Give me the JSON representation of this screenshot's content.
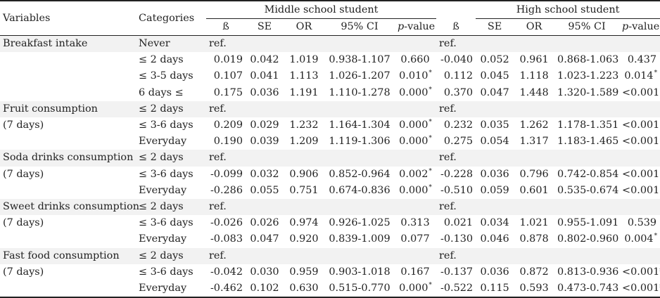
{
  "headers": {
    "variables": "Variables",
    "categories": "Categories",
    "middle_group": "Middle school student",
    "high_group": "High school student",
    "cols": [
      "ß",
      "SE",
      "OR",
      "95% CI"
    ],
    "p_italic": "p",
    "p_rest": "-value"
  },
  "rows": [
    {
      "variable": "Breakfast intake",
      "category": "Never",
      "m": {
        "b": "ref.",
        "se": "",
        "or": "",
        "ci": "",
        "p": "",
        "star": ""
      },
      "h": {
        "b": "ref.",
        "se": "",
        "or": "",
        "ci": "",
        "p": "",
        "star": ""
      }
    },
    {
      "variable": "",
      "category": "≤ 2 days",
      "m": {
        "b": "0.019",
        "se": "0.042",
        "or": "1.019",
        "ci": "0.938-1.107",
        "p": "0.660",
        "star": ""
      },
      "h": {
        "b": "-0.040",
        "se": "0.052",
        "or": "0.961",
        "ci": "0.868-1.063",
        "p": "0.437",
        "star": ""
      }
    },
    {
      "variable": "",
      "category": "≤ 3-5 days",
      "m": {
        "b": "0.107",
        "se": "0.041",
        "or": "1.113",
        "ci": "1.026-1.207",
        "p": "0.010",
        "star": "*"
      },
      "h": {
        "b": "0.112",
        "se": "0.045",
        "or": "1.118",
        "ci": "1.023-1.223",
        "p": "0.014",
        "star": "*"
      }
    },
    {
      "variable": "",
      "category": "6 days ≤",
      "m": {
        "b": "0.175",
        "se": "0.036",
        "or": "1.191",
        "ci": "1.110-1.278",
        "p": "0.000",
        "star": "*"
      },
      "h": {
        "b": "0.370",
        "se": "0.047",
        "or": "1.448",
        "ci": "1.320-1.589",
        "p": "<0.001",
        "star": "*"
      }
    },
    {
      "variable": "Fruit consumption",
      "category": "≤ 2 days",
      "m": {
        "b": "ref.",
        "se": "",
        "or": "",
        "ci": "",
        "p": "",
        "star": ""
      },
      "h": {
        "b": "ref.",
        "se": "",
        "or": "",
        "ci": "",
        "p": "",
        "star": ""
      }
    },
    {
      "variable": "(7 days)",
      "category": "≤ 3-6 days",
      "m": {
        "b": "0.209",
        "se": "0.029",
        "or": "1.232",
        "ci": "1.164-1.304",
        "p": "0.000",
        "star": "*"
      },
      "h": {
        "b": "0.232",
        "se": "0.035",
        "or": "1.262",
        "ci": "1.178-1.351",
        "p": "<0.001",
        "star": "*"
      }
    },
    {
      "variable": "",
      "category": "Everyday",
      "m": {
        "b": "0.190",
        "se": "0.039",
        "or": "1.209",
        "ci": "1.119-1.306",
        "p": "0.000",
        "star": "*"
      },
      "h": {
        "b": "0.275",
        "se": "0.054",
        "or": "1.317",
        "ci": "1.183-1.465",
        "p": "<0.001",
        "star": "*"
      }
    },
    {
      "variable": "Soda drinks consumption",
      "category": "≤ 2 days",
      "m": {
        "b": "ref.",
        "se": "",
        "or": "",
        "ci": "",
        "p": "",
        "star": ""
      },
      "h": {
        "b": "ref.",
        "se": "",
        "or": "",
        "ci": "",
        "p": "",
        "star": ""
      }
    },
    {
      "variable": "(7 days)",
      "category": "≤ 3-6 days",
      "m": {
        "b": "-0.099",
        "se": "0.032",
        "or": "0.906",
        "ci": "0.852-0.964",
        "p": "0.002",
        "star": "*"
      },
      "h": {
        "b": "-0.228",
        "se": "0.036",
        "or": "0.796",
        "ci": "0.742-0.854",
        "p": "<0.001",
        "star": "*"
      }
    },
    {
      "variable": "",
      "category": "Everyday",
      "m": {
        "b": "-0.286",
        "se": "0.055",
        "or": "0.751",
        "ci": "0.674-0.836",
        "p": "0.000",
        "star": "*"
      },
      "h": {
        "b": "-0.510",
        "se": "0.059",
        "or": "0.601",
        "ci": "0.535-0.674",
        "p": "<0.001",
        "star": "*"
      }
    },
    {
      "variable": "Sweet drinks consumption",
      "category": "≤ 2 days",
      "m": {
        "b": "ref.",
        "se": "",
        "or": "",
        "ci": "",
        "p": "",
        "star": ""
      },
      "h": {
        "b": "ref.",
        "se": "",
        "or": "",
        "ci": "",
        "p": "",
        "star": ""
      }
    },
    {
      "variable": "(7 days)",
      "category": "≤ 3-6 days",
      "m": {
        "b": "-0.026",
        "se": "0.026",
        "or": "0.974",
        "ci": "0.926-1.025",
        "p": "0.313",
        "star": ""
      },
      "h": {
        "b": "0.021",
        "se": "0.034",
        "or": "1.021",
        "ci": "0.955-1.091",
        "p": "0.539",
        "star": ""
      }
    },
    {
      "variable": "",
      "category": "Everyday",
      "m": {
        "b": "-0.083",
        "se": "0.047",
        "or": "0.920",
        "ci": "0.839-1.009",
        "p": "0.077",
        "star": ""
      },
      "h": {
        "b": "-0.130",
        "se": "0.046",
        "or": "0.878",
        "ci": "0.802-0.960",
        "p": "0.004",
        "star": "*"
      }
    },
    {
      "variable": "Fast food consumption",
      "category": "≤ 2 days",
      "m": {
        "b": "ref.",
        "se": "",
        "or": "",
        "ci": "",
        "p": "",
        "star": ""
      },
      "h": {
        "b": "ref.",
        "se": "",
        "or": "",
        "ci": "",
        "p": "",
        "star": ""
      }
    },
    {
      "variable": "(7 days)",
      "category": "≤ 3-6 days",
      "m": {
        "b": "-0.042",
        "se": "0.030",
        "or": "0.959",
        "ci": "0.903-1.018",
        "p": "0.167",
        "star": ""
      },
      "h": {
        "b": "-0.137",
        "se": "0.036",
        "or": "0.872",
        "ci": "0.813-0.936",
        "p": "<0.001*",
        "star": ""
      }
    },
    {
      "variable": "",
      "category": "Everyday",
      "m": {
        "b": "-0.462",
        "se": "0.102",
        "or": "0.630",
        "ci": "0.515-0.770",
        "p": "0.000",
        "star": "*"
      },
      "h": {
        "b": "-0.522",
        "se": "0.115",
        "or": "0.593",
        "ci": "0.473-0.743",
        "p": "<0.001*",
        "star": ""
      }
    }
  ]
}
